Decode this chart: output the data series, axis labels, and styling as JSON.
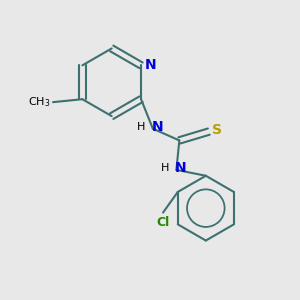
{
  "bg_color": "#e8e8e8",
  "bond_color": "#3d7070",
  "bond_width": 1.5,
  "N_color": "#0000dd",
  "S_color": "#b8a000",
  "Cl_color": "#228800",
  "text_color": "#000000",
  "font_size": 9,
  "figsize": [
    3.0,
    3.0
  ],
  "dpi": 100,
  "xlim": [
    0.0,
    1.0
  ],
  "ylim": [
    0.0,
    1.0
  ]
}
